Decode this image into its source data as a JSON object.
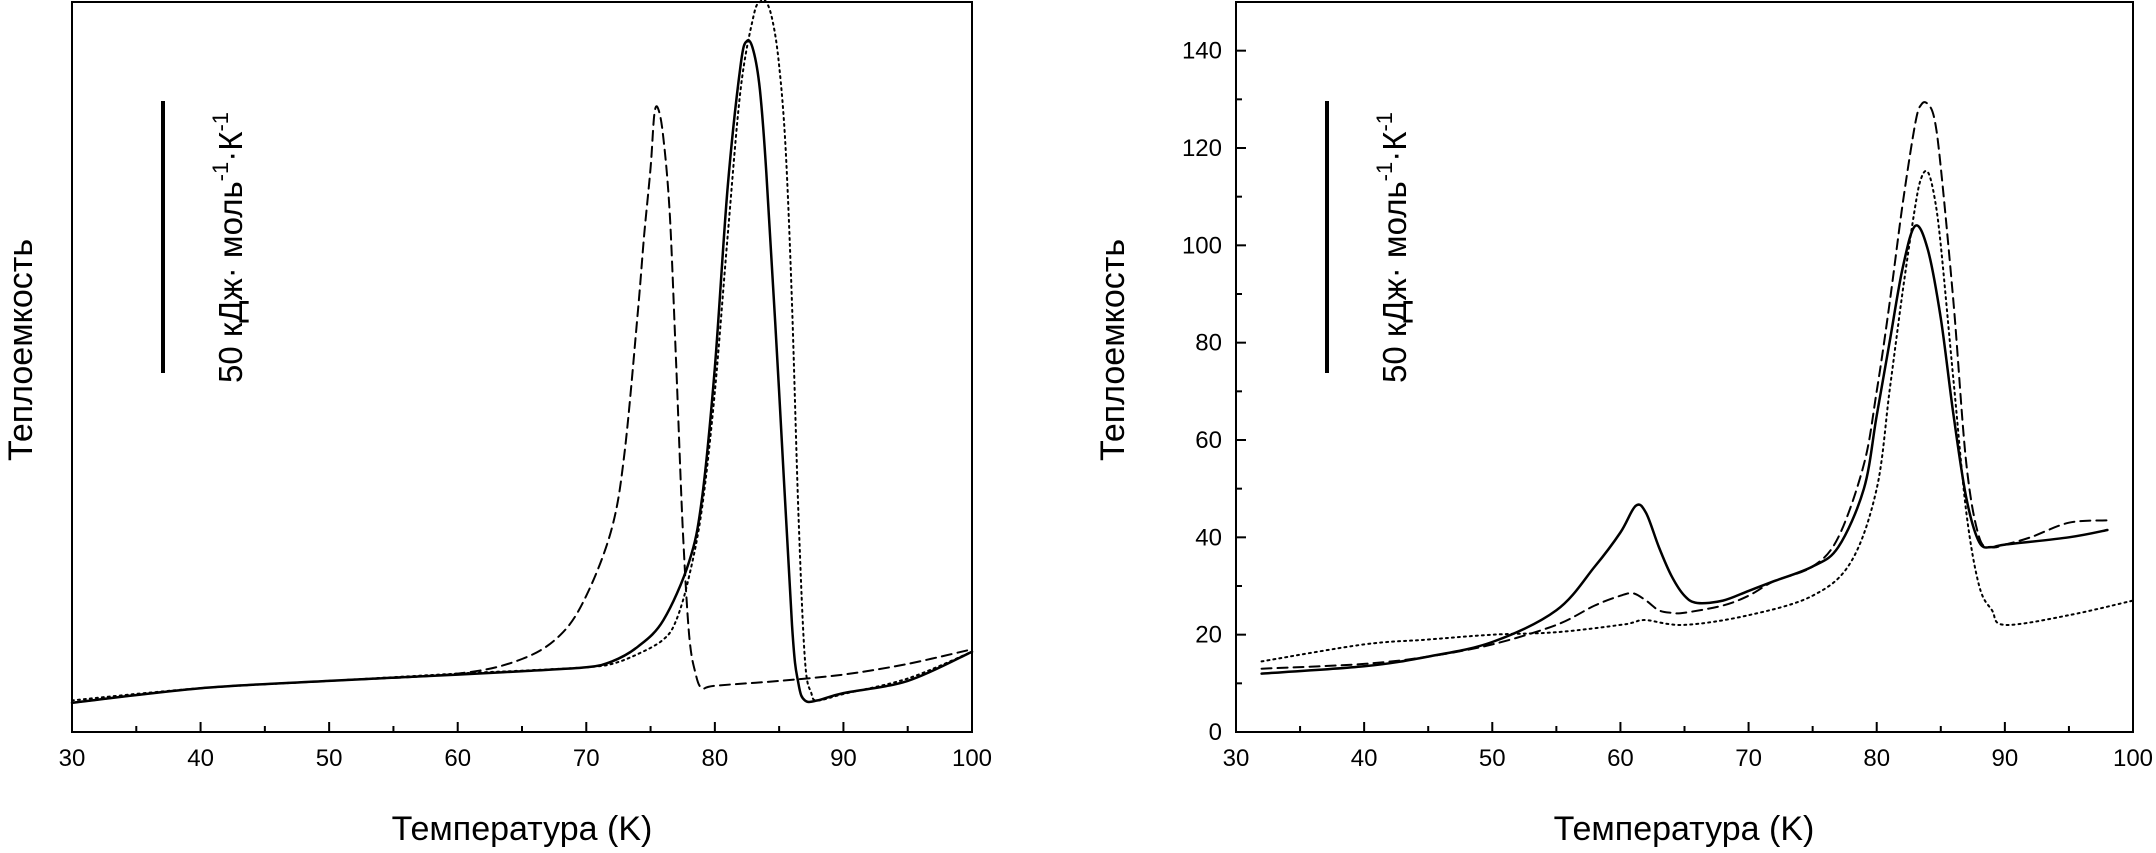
{
  "chart_data": [
    {
      "type": "line",
      "title": "",
      "xlabel": "Температура (K)",
      "ylabel": "Теплоемкость",
      "xlim": [
        30,
        100
      ],
      "x_ticks": [
        "30",
        "40",
        "50",
        "60",
        "70",
        "80",
        "90",
        "100"
      ],
      "y_ticks_shown": false,
      "ylim": [
        0,
        150
      ],
      "scale_bar": {
        "value": 50,
        "text": "50 кДж· моль",
        "sup1": "-1",
        "mid": "·К",
        "sup2": "-1"
      },
      "series": [
        {
          "style": "solid",
          "x": [
            30,
            40,
            50,
            60,
            65,
            70,
            72,
            74,
            76,
            78,
            79,
            80,
            81,
            82,
            82.5,
            83,
            83.5,
            84,
            85,
            86,
            86.5,
            87,
            88,
            90,
            95,
            100
          ],
          "y": [
            6,
            9,
            10.5,
            11.8,
            12.5,
            13.3,
            14.5,
            17.5,
            23,
            35,
            48,
            75,
            112,
            137,
            142,
            140,
            132,
            115,
            70,
            22,
            10,
            6.5,
            6.5,
            8,
            10.5,
            16.5
          ]
        },
        {
          "style": "dashed",
          "x": [
            30,
            40,
            50,
            60,
            65,
            68,
            70,
            72,
            73,
            74,
            74.5,
            75,
            75.3,
            75.6,
            76,
            76.5,
            77,
            77.5,
            78,
            78.5,
            79,
            80,
            85,
            90,
            95,
            100
          ],
          "y": [
            6,
            9,
            10.5,
            12,
            15,
            20,
            28,
            42,
            58,
            86,
            102,
            116,
            127,
            128,
            122,
            106,
            75,
            42,
            20,
            12,
            9,
            9.5,
            10.5,
            11.8,
            14,
            17
          ]
        },
        {
          "style": "dotted",
          "x": [
            30,
            40,
            50,
            60,
            65,
            70,
            72,
            74,
            76,
            77,
            78,
            79,
            80,
            81,
            82,
            83,
            83.5,
            84,
            84.5,
            85,
            85.5,
            86,
            86.5,
            87,
            87.5,
            88,
            90,
            95,
            100
          ],
          "y": [
            6.5,
            9,
            10.5,
            12,
            12.6,
            13.3,
            14,
            16,
            19,
            23,
            32,
            46,
            70,
            102,
            132,
            147,
            150,
            150,
            146,
            137,
            120,
            88,
            45,
            15,
            8,
            6.5,
            7.8,
            11,
            16.5
          ]
        }
      ]
    },
    {
      "type": "line",
      "title": "",
      "xlabel": "Температура (K)",
      "ylabel": "Теплоемкость",
      "xlim": [
        30,
        100
      ],
      "ylim": [
        0,
        150
      ],
      "x_ticks": [
        "30",
        "40",
        "50",
        "60",
        "70",
        "80",
        "90",
        "100"
      ],
      "y_ticks": [
        "0",
        "20",
        "40",
        "60",
        "80",
        "100",
        "120",
        "140"
      ],
      "scale_bar": {
        "value": 50,
        "text": "50 кДж· моль",
        "sup1": "-1",
        "mid": "·К",
        "sup2": "-1"
      },
      "series": [
        {
          "style": "solid",
          "x": [
            32,
            40,
            45,
            50,
            55,
            58,
            60,
            61.2,
            62,
            63,
            64,
            65,
            66,
            68,
            70,
            72,
            75,
            77,
            79,
            80,
            81,
            82,
            83,
            84,
            85,
            86,
            87,
            88,
            89,
            90,
            95,
            98
          ],
          "y": [
            12,
            13.5,
            15.5,
            18.5,
            25,
            34,
            41,
            46.5,
            45,
            38,
            32,
            28,
            26.5,
            27,
            29,
            31,
            34,
            38,
            50,
            65,
            80,
            95,
            104,
            99,
            85,
            65,
            48,
            39,
            38,
            38.5,
            40,
            41.5
          ]
        },
        {
          "style": "dashed",
          "x": [
            32,
            40,
            45,
            50,
            55,
            58,
            60,
            61,
            62,
            63,
            64,
            65,
            68,
            70,
            72,
            75,
            77,
            79,
            80,
            81,
            82,
            83,
            83.5,
            84,
            84.5,
            85,
            86,
            87,
            88,
            89,
            90,
            92,
            95,
            98
          ],
          "y": [
            13,
            14,
            15.5,
            18,
            22,
            26,
            28,
            28.5,
            27,
            25,
            24.5,
            24.5,
            26,
            28,
            31,
            34,
            40,
            55,
            70,
            88,
            108,
            125,
            129,
            129,
            126,
            116,
            88,
            55,
            40,
            38,
            38.5,
            40,
            43,
            43.5
          ]
        },
        {
          "style": "dotted",
          "x": [
            32,
            40,
            45,
            50,
            55,
            60,
            61,
            62,
            65,
            70,
            75,
            78,
            80,
            81,
            82,
            83,
            83.5,
            84,
            84.5,
            85,
            86,
            87,
            88,
            89,
            90,
            95,
            100
          ],
          "y": [
            14.5,
            18,
            19,
            20,
            20.5,
            22,
            22.5,
            23,
            22,
            24,
            28,
            35,
            50,
            70,
            90,
            108,
            114,
            115,
            110,
            100,
            72,
            45,
            30,
            25,
            22,
            24,
            27
          ]
        }
      ]
    }
  ]
}
